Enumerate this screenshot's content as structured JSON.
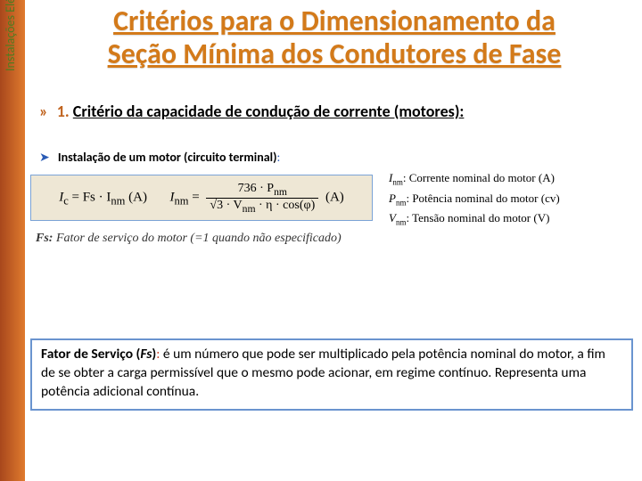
{
  "sidebar": {
    "label": "Instalações Elétricas II"
  },
  "title": {
    "line1": "Critérios para o Dimensionamento da",
    "line2": "Seção Mínima dos Condutores de Fase"
  },
  "criterion": {
    "chevron": "»",
    "number": "1.",
    "text": "Critério da capacidade de condução de corrente (motores):"
  },
  "motorLine": {
    "marker": "➤",
    "text": "Instalação de um motor (circuito terminal)",
    "colon": ":"
  },
  "formula": {
    "left": "I",
    "leftSub": "c",
    "eq1": " = Fs · I",
    "eq1Sub": "nm",
    "unit1": " (A)",
    "mid": "I",
    "midSub": "nm",
    "eq2": " = ",
    "fracTop": "736 · P",
    "fracTopSub": "nm",
    "fracBot1": "√3 · V",
    "fracBotSub": "nm",
    "fracBot2": " · η · cos(φ)",
    "unit2": " (A)"
  },
  "legend": {
    "l1a": "I",
    "l1sub": "nm",
    "l1b": ": Corrente nominal do motor (A)",
    "l2a": "P",
    "l2sub": "nm",
    "l2b": ": Potência nominal do motor (cv)",
    "l3a": "V",
    "l3sub": "nm",
    "l3b": ": Tensão nominal do motor (V)"
  },
  "fsLine": {
    "bold": "Fs:",
    "rest": " Fator de serviço do motor (=1 quando não especificado)"
  },
  "infoBox": {
    "head": "Fator de Serviço (",
    "fs": "Fs",
    "headEnd": ")",
    "colon": ":",
    "body": " é um número que pode ser multiplicado pela potência nominal do motor, a fim de se obter a carga permissível que o mesmo pode acionar, em regime contínuo. Representa uma potência adicional contínua."
  }
}
